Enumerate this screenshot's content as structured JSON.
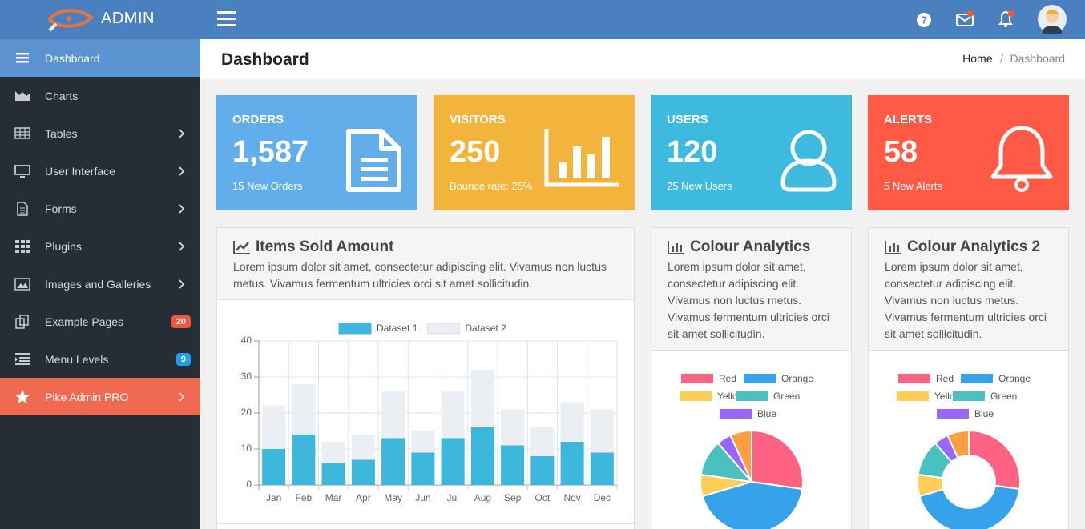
{
  "header": {
    "brand": "ADMIN"
  },
  "sidebar": {
    "items": [
      {
        "label": "Dashboard"
      },
      {
        "label": "Charts"
      },
      {
        "label": "Tables"
      },
      {
        "label": "User Interface"
      },
      {
        "label": "Forms"
      },
      {
        "label": "Plugins"
      },
      {
        "label": "Images and Galleries"
      },
      {
        "label": "Example Pages",
        "badge": 20
      },
      {
        "label": "Menu Levels",
        "badge": 9
      },
      {
        "label": "Pike Admin PRO"
      }
    ]
  },
  "page": {
    "title": "Dashboard",
    "breadcrumb": [
      "Home",
      "Dashboard"
    ]
  },
  "cards": [
    {
      "title": "ORDERS",
      "value": "1,587",
      "note": "15 New Orders"
    },
    {
      "title": "VISITORS",
      "value": "250",
      "note": "Bounce rate: 25%"
    },
    {
      "title": "USERS",
      "value": "120",
      "note": "25 New Users"
    },
    {
      "title": "ALERTS",
      "value": "58",
      "note": "5 New Alerts"
    }
  ],
  "panels": [
    {
      "title": "Items Sold Amount",
      "text": "Lorem ipsum dolor sit amet, consectetur adipiscing elit. Vivamus non luctus metus. Vivamus fermentum ultricies orci sit amet sollicitudin.",
      "chart_data": {
        "type": "bar",
        "stacked": true,
        "categories": [
          "Jan",
          "Feb",
          "Mar",
          "Apr",
          "May",
          "Jun",
          "Jul",
          "Aug",
          "Sep",
          "Oct",
          "Nov",
          "Dec"
        ],
        "series": [
          {
            "name": "Dataset 1",
            "color": "#3eb7dd",
            "values": [
              10,
              14,
              6,
              7,
              13,
              9,
              13,
              16,
              11,
              8,
              12,
              9
            ]
          },
          {
            "name": "Dataset 2",
            "color": "#ebeef3",
            "values": [
              12,
              14,
              6,
              7,
              13,
              6,
              13,
              16,
              10,
              8,
              11,
              12
            ]
          }
        ],
        "ylim": [
          0,
          40
        ],
        "yticks": [
          0,
          10,
          20,
          30,
          40
        ],
        "grid": true,
        "legend": "top"
      }
    },
    {
      "title": "Colour Analytics",
      "text": "Lorem ipsum dolor sit amet, consectetur adipiscing elit. Vivamus non luctus metus. Vivamus fermentum ultricies orci sit amet sollicitudin.",
      "chart_data": {
        "type": "pie",
        "categories": [
          "Red",
          "Orange",
          "Yellow",
          "Green",
          "Blue",
          null
        ],
        "values": [
          12,
          19,
          3,
          5,
          2,
          3
        ],
        "colors": [
          "#ff6384",
          "#36a2eb",
          "#ffce56",
          "#4bc0c0",
          "#9966ff",
          "#ff9f40"
        ],
        "legend": "top"
      }
    },
    {
      "title": "Colour Analytics 2",
      "text": "Lorem ipsum dolor sit amet, consectetur adipiscing elit. Vivamus non luctus metus. Vivamus fermentum ultricies orci sit amet sollicitudin.",
      "chart_data": {
        "type": "doughnut",
        "categories": [
          "Red",
          "Orange",
          "Yellow",
          "Green",
          "Blue",
          null
        ],
        "values": [
          12,
          19,
          3,
          5,
          2,
          3
        ],
        "colors": [
          "#ff6384",
          "#36a2eb",
          "#ffce56",
          "#4bc0c0",
          "#9966ff",
          "#ff9f40"
        ],
        "legend": "top"
      }
    }
  ]
}
